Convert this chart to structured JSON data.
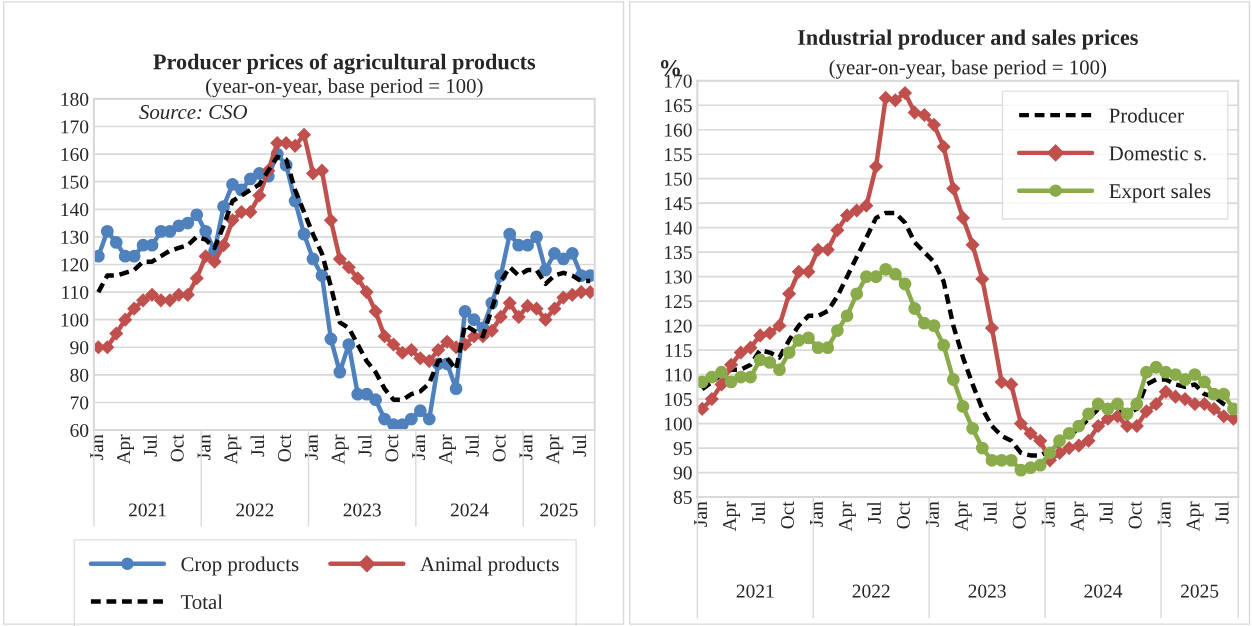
{
  "chart_data": [
    {
      "type": "line",
      "title": "Producer prices of agricultural products",
      "subtitle": "(year-on-year, base period = 100)",
      "categories": [
        "Jan",
        null,
        null,
        "Apr",
        null,
        null,
        "Jul",
        null,
        null,
        "Oct",
        null,
        null,
        "Jan",
        null,
        null,
        "Apr",
        null,
        null,
        "Jul",
        null,
        null,
        "Oct",
        null,
        null,
        "Jan",
        null,
        null,
        "Apr",
        null,
        null,
        "Jul",
        null,
        null,
        "Oct",
        null,
        null,
        "Jan",
        null,
        null,
        "Apr",
        null,
        null,
        "Jul",
        null,
        null,
        "Oct",
        null,
        null,
        "Jan",
        null,
        null,
        "Apr",
        null,
        null,
        "Jul",
        null
      ],
      "series": [
        {
          "name": "Crop products",
          "color": "#4f81bd",
          "marker": "circle",
          "line_style": "solid",
          "values": [
            123,
            132,
            128,
            123,
            123,
            127,
            127,
            132,
            132,
            134,
            135,
            138,
            132,
            125,
            141,
            149,
            147,
            151,
            153,
            152,
            160,
            156,
            143,
            131,
            122,
            116,
            93,
            81,
            91,
            73,
            73,
            71,
            64,
            62,
            62,
            64,
            67,
            64,
            84,
            84,
            75,
            103,
            100,
            97,
            106,
            116,
            131,
            127,
            127,
            130,
            118,
            124,
            122,
            124,
            116,
            116
          ]
        },
        {
          "name": "Animal products",
          "color": "#c0504d",
          "marker": "diamond",
          "line_style": "solid",
          "values": [
            90,
            90,
            95,
            100,
            104,
            107,
            109,
            107,
            107,
            109,
            109,
            115,
            123,
            121,
            127,
            136,
            139,
            139,
            145,
            154,
            164,
            164,
            163,
            167,
            153,
            154,
            136,
            122,
            119,
            115,
            110,
            103,
            94,
            91,
            88,
            89,
            86,
            85,
            89,
            92,
            90,
            91,
            94,
            94,
            96,
            101,
            106,
            101,
            105,
            104,
            100,
            104,
            108,
            109,
            110,
            110
          ]
        },
        {
          "name": "Total",
          "color": "#000000",
          "marker": "none",
          "line_style": "dashed",
          "values": [
            110,
            116,
            116,
            117,
            118,
            121,
            121,
            123,
            125,
            126,
            127,
            130,
            129,
            126,
            134,
            143,
            145,
            147,
            149,
            154,
            159,
            158,
            147,
            139,
            131,
            124,
            112,
            99,
            97,
            91,
            85,
            81,
            75,
            71,
            71,
            73,
            74,
            77,
            85,
            86,
            82,
            98,
            96,
            94,
            104,
            114,
            119,
            116,
            118,
            118,
            113,
            116,
            117,
            116,
            114,
            114
          ]
        }
      ],
      "ylim": [
        60,
        180
      ],
      "yticks": [
        60,
        70,
        80,
        90,
        100,
        110,
        120,
        130,
        140,
        150,
        160,
        170,
        180
      ],
      "grid": "y",
      "legend": "bottom",
      "annotations": [
        {
          "text": "Source: CSO"
        },
        "2021",
        "2022",
        "2023",
        "2024",
        "2025"
      ]
    },
    {
      "type": "line",
      "title": "Industrial producer and sales prices",
      "subtitle": "(year-on-year, base period = 100)",
      "ylabel": "%",
      "categories": [
        "Jan",
        null,
        null,
        "Apr",
        null,
        null,
        "Jul",
        null,
        null,
        "Oct",
        null,
        null,
        "Jan",
        null,
        null,
        "Apr",
        null,
        null,
        "Jul",
        null,
        null,
        "Oct",
        null,
        null,
        "Jan",
        null,
        null,
        "Apr",
        null,
        null,
        "Jul",
        null,
        null,
        "Oct",
        null,
        null,
        "Jan",
        null,
        null,
        "Apr",
        null,
        null,
        "Jul",
        null,
        null,
        "Oct",
        null,
        null,
        "Jan",
        null,
        null,
        "Apr",
        null,
        null,
        "Jul",
        null
      ],
      "series": [
        {
          "name": "Producer",
          "color": "#000000",
          "marker": "none",
          "line_style": "dashed",
          "values": [
            107,
            108.5,
            110,
            111,
            111,
            112,
            115,
            114.5,
            113.5,
            117,
            120,
            122,
            122,
            123,
            126,
            130,
            134,
            138,
            142,
            143,
            143,
            141,
            137,
            135,
            133,
            129,
            120,
            113.5,
            108,
            103,
            99.5,
            97.5,
            96.5,
            94,
            93.5,
            93.5,
            94.5,
            96,
            97.5,
            99,
            101,
            103,
            103,
            102.5,
            102,
            103,
            108,
            109,
            109,
            108,
            107.5,
            108,
            106,
            105.5,
            104,
            103
          ]
        },
        {
          "name": "Domestic s.",
          "color": "#c0504d",
          "marker": "diamond",
          "line_style": "solid",
          "values": [
            103,
            105,
            108,
            112,
            114.5,
            115.5,
            118,
            118.5,
            120,
            126.5,
            131,
            131,
            135.5,
            135.5,
            139.5,
            142.5,
            143.5,
            144.5,
            152.5,
            166.5,
            166,
            167.5,
            163.5,
            163,
            161,
            156.5,
            148,
            142,
            136.5,
            129.5,
            119.5,
            108.5,
            108,
            100,
            98,
            96.5,
            92.5,
            94,
            95,
            95.5,
            96.5,
            99.5,
            101,
            101.5,
            99.5,
            99.5,
            102.5,
            104,
            106.5,
            105.5,
            105,
            104,
            104,
            103,
            101.5,
            101
          ]
        },
        {
          "name": "Export sales",
          "color": "#8aab4a",
          "marker": "circle",
          "line_style": "solid",
          "values": [
            108.5,
            109.5,
            110.5,
            108.5,
            109.5,
            109.5,
            113,
            112.5,
            111,
            114.5,
            117,
            117.5,
            115.5,
            115.5,
            119,
            122,
            126.5,
            130,
            130,
            131.5,
            130.5,
            128.5,
            123.5,
            120.5,
            120,
            116,
            109,
            103.5,
            99,
            95,
            92.5,
            92.5,
            92.5,
            90.5,
            91,
            91.5,
            94,
            96.5,
            98,
            99.5,
            102,
            104,
            103,
            104,
            102,
            104,
            110.5,
            111.5,
            110.5,
            110,
            109,
            110,
            108.5,
            106,
            106,
            103
          ]
        }
      ],
      "ylim": [
        85,
        170
      ],
      "yticks": [
        85,
        90,
        95,
        100,
        105,
        110,
        115,
        120,
        125,
        130,
        135,
        140,
        145,
        150,
        155,
        160,
        165,
        170
      ],
      "grid": "y",
      "legend": "top right",
      "annotations": [
        "2021",
        "2022",
        "2023",
        "2024",
        "2025"
      ]
    }
  ]
}
